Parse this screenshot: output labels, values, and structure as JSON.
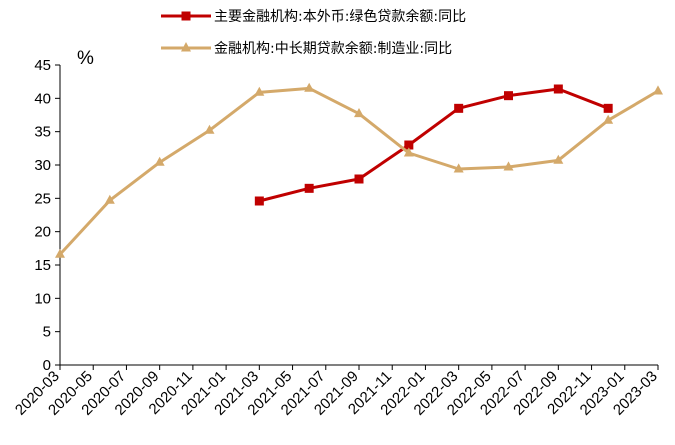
{
  "chart_data": {
    "type": "line",
    "y_unit": "%",
    "ylim": [
      0,
      45
    ],
    "y_ticks": [
      0,
      5,
      10,
      15,
      20,
      25,
      30,
      35,
      40,
      45
    ],
    "x_tick_labels": [
      "2020-03",
      "2020-05",
      "2020-07",
      "2020-09",
      "2020-11",
      "2021-01",
      "2021-03",
      "2021-05",
      "2021-07",
      "2021-09",
      "2021-11",
      "2022-01",
      "2022-03",
      "2022-05",
      "2022-07",
      "2022-09",
      "2022-11",
      "2023-01",
      "2023-03"
    ],
    "grid": false,
    "legend_position": "top-center",
    "series": [
      {
        "name": "主要金融机构:本外币:绿色贷款余额:同比",
        "color": "#C00000",
        "marker": "square",
        "x": [
          "2021-03",
          "2021-06",
          "2021-09",
          "2021-12",
          "2022-03",
          "2022-06",
          "2022-09",
          "2022-12"
        ],
        "values": [
          24.6,
          26.5,
          27.9,
          33.0,
          38.5,
          40.4,
          41.4,
          38.5
        ]
      },
      {
        "name": "金融机构:中长期贷款余额:制造业:同比",
        "color": "#D4A96A",
        "marker": "triangle",
        "x": [
          "2020-03",
          "2020-06",
          "2020-09",
          "2020-12",
          "2021-03",
          "2021-06",
          "2021-09",
          "2021-12",
          "2022-03",
          "2022-06",
          "2022-09",
          "2022-12",
          "2023-03"
        ],
        "values": [
          16.6,
          24.7,
          30.4,
          35.2,
          40.9,
          41.5,
          37.7,
          31.8,
          29.4,
          29.7,
          30.7,
          36.7,
          41.1
        ]
      }
    ]
  }
}
